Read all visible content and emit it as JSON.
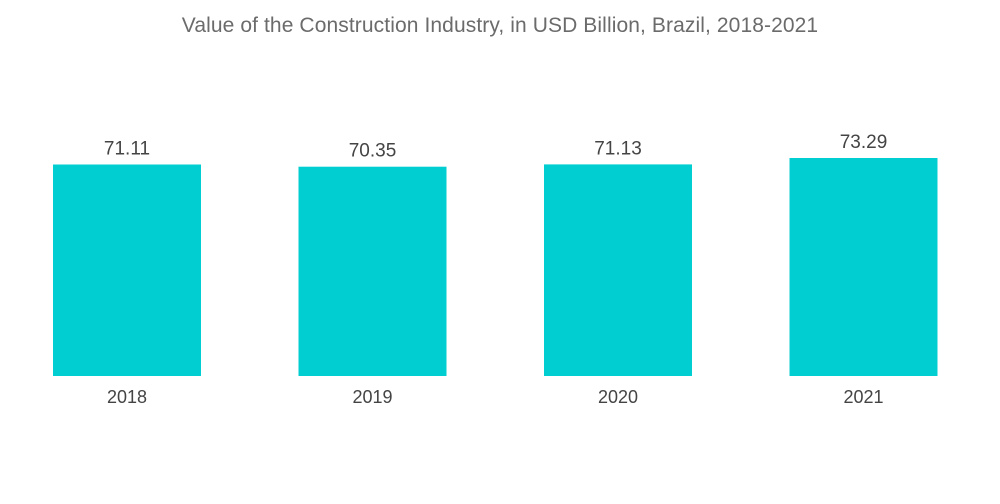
{
  "chart_data": {
    "type": "bar",
    "title": "Value of the Construction Industry, in USD Billion, Brazil, 2018-2021",
    "categories": [
      "2018",
      "2019",
      "2020",
      "2021"
    ],
    "values": [
      71.11,
      70.35,
      71.13,
      73.29
    ],
    "value_labels": [
      "71.11",
      "70.35",
      "71.13",
      "73.29"
    ],
    "xlabel": "",
    "ylabel": "",
    "ylim": [
      0,
      73.29
    ],
    "grid": false,
    "legend": "none",
    "bar_color": "#00CED1"
  }
}
